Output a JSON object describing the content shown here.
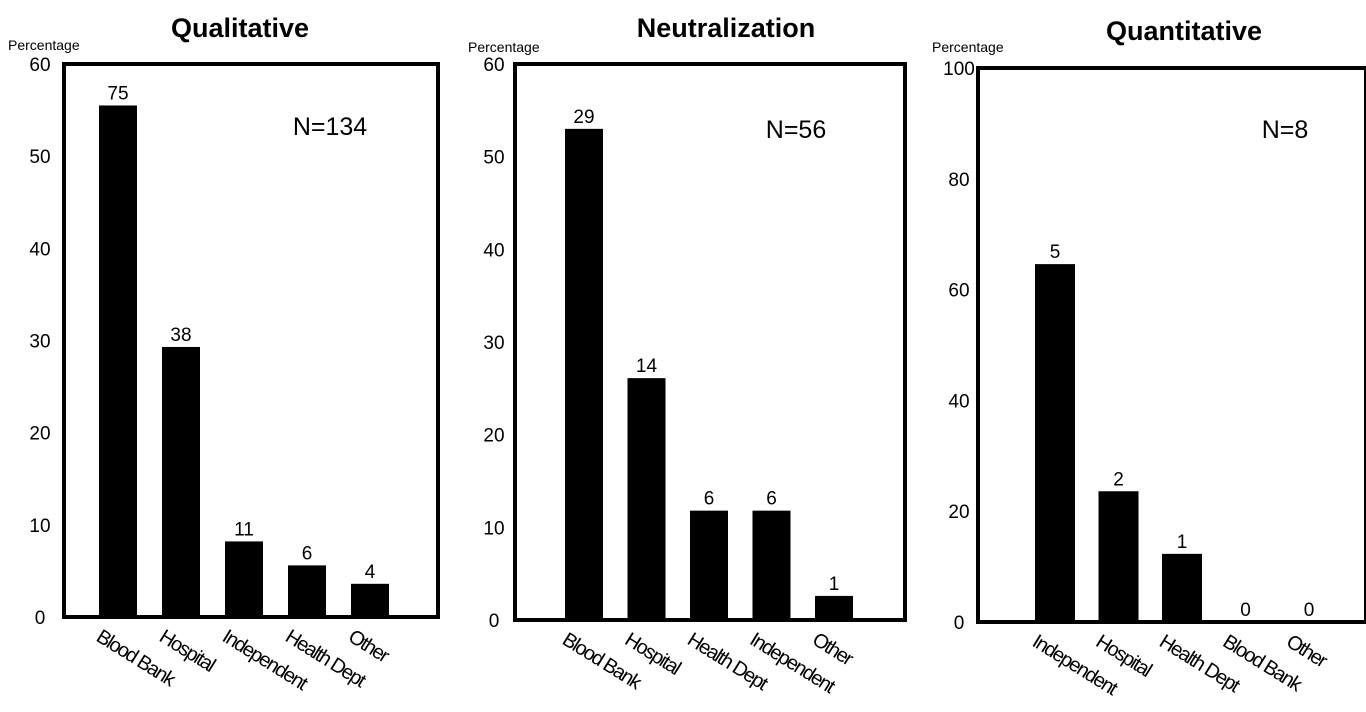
{
  "chart_data": [
    {
      "type": "bar",
      "title": "Qualitative",
      "ylabel": "Percentage",
      "annotation": "N=134",
      "ylim": [
        0,
        60
      ],
      "yticks": [
        0,
        10,
        20,
        30,
        40,
        50,
        60
      ],
      "categories": [
        "Blood Bank",
        "Hospital",
        "Independent",
        "Health Dept",
        "Other"
      ],
      "values": [
        55.5,
        29.3,
        8.2,
        5.6,
        3.6
      ],
      "data_labels": [
        "75",
        "38",
        "11",
        "6",
        "4"
      ],
      "bar_color": "#000000"
    },
    {
      "type": "bar",
      "title": "Neutralization",
      "ylabel": "Percentage",
      "annotation": "N=56",
      "ylim": [
        0,
        60
      ],
      "yticks": [
        0,
        10,
        20,
        30,
        40,
        50,
        60
      ],
      "categories": [
        "Blood Bank",
        "Hospital",
        "Health Dept",
        "Independent",
        "Other"
      ],
      "values": [
        53.0,
        26.1,
        11.8,
        11.8,
        2.6
      ],
      "data_labels": [
        "29",
        "14",
        "6",
        "6",
        "1"
      ],
      "bar_color": "#000000"
    },
    {
      "type": "bar",
      "title": "Quantitative",
      "ylabel": "Percentage",
      "annotation": "N=8",
      "ylim": [
        0,
        100
      ],
      "yticks": [
        0,
        20,
        40,
        60,
        80,
        100
      ],
      "categories": [
        "Independent",
        "Hospital",
        "Health Dept",
        "Blood Bank",
        "Other"
      ],
      "values": [
        64.6,
        23.6,
        12.3,
        0,
        0
      ],
      "data_labels": [
        "5",
        "2",
        "1",
        "0",
        "0"
      ],
      "bar_color": "#000000"
    }
  ]
}
